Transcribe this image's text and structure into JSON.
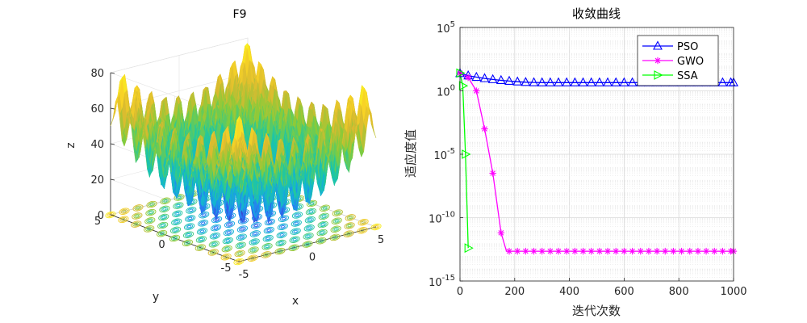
{
  "chart_data": [
    {
      "type": "surface3d",
      "title": "F9",
      "xlabel": "x",
      "ylabel": "y",
      "zlabel": "z",
      "x_ticks": [
        "-5",
        "0",
        "5"
      ],
      "y_ticks": [
        "-5",
        "0",
        "5"
      ],
      "z_ticks": [
        "0",
        "20",
        "40",
        "60",
        "80"
      ],
      "xlim": [
        -5,
        5
      ],
      "ylim": [
        -5,
        5
      ],
      "zlim": [
        0,
        80
      ],
      "colormap": [
        "#3e26a8",
        "#2e6ff7",
        "#13b0db",
        "#1fc8a0",
        "#85cc3a",
        "#d8ba30",
        "#f9d426",
        "#f6f920"
      ]
    },
    {
      "type": "line",
      "title": "收敛曲线",
      "xlabel": "迭代次数",
      "ylabel": "适应度值",
      "xlim": [
        0,
        1000
      ],
      "ylim_log10": [
        -15,
        5
      ],
      "x_ticks": [
        "0",
        "200",
        "400",
        "600",
        "800",
        "1000"
      ],
      "y_ticks": [
        {
          "base": "10",
          "exp": "5",
          "value": 5
        },
        {
          "base": "10",
          "exp": "0",
          "value": 0
        },
        {
          "base": "10",
          "exp": "-5",
          "value": -5
        },
        {
          "base": "10",
          "exp": "-10",
          "value": -10
        },
        {
          "base": "10",
          "exp": "-15",
          "value": -15
        }
      ],
      "legend_position": "top-right",
      "series": [
        {
          "name": "PSO",
          "color": "#0000ff",
          "marker": "triangle",
          "x": [
            0,
            30,
            60,
            90,
            120,
            150,
            180,
            210,
            240,
            270,
            300,
            330,
            360,
            390,
            420,
            450,
            480,
            510,
            540,
            570,
            600,
            630,
            660,
            690,
            720,
            750,
            780,
            810,
            840,
            870,
            900,
            930,
            960,
            990,
            1000
          ],
          "log10_y": [
            1.38,
            1.2,
            1.08,
            0.98,
            0.9,
            0.83,
            0.77,
            0.72,
            0.68,
            0.66,
            0.65,
            0.65,
            0.65,
            0.65,
            0.65,
            0.65,
            0.65,
            0.65,
            0.65,
            0.65,
            0.65,
            0.65,
            0.65,
            0.65,
            0.65,
            0.65,
            0.65,
            0.65,
            0.65,
            0.65,
            0.65,
            0.65,
            0.65,
            0.65,
            0.65
          ]
        },
        {
          "name": "GWO",
          "color": "#ff00ff",
          "marker": "asterisk",
          "x": [
            0,
            30,
            60,
            90,
            120,
            150,
            170,
            180,
            210,
            240,
            270,
            300,
            330,
            360,
            390,
            420,
            450,
            480,
            510,
            540,
            570,
            600,
            630,
            660,
            690,
            720,
            750,
            780,
            810,
            840,
            870,
            900,
            930,
            960,
            990,
            1000
          ],
          "log10_y": [
            1.4,
            1.05,
            0.0,
            -3.0,
            -6.5,
            -11.2,
            -12.65,
            -12.65,
            -12.65,
            -12.65,
            -12.65,
            -12.65,
            -12.65,
            -12.65,
            -12.65,
            -12.65,
            -12.65,
            -12.65,
            -12.65,
            -12.65,
            -12.65,
            -12.65,
            -12.65,
            -12.65,
            -12.65,
            -12.65,
            -12.65,
            -12.65,
            -12.65,
            -12.65,
            -12.65,
            -12.65,
            -12.65,
            -12.65,
            -12.65,
            -12.65
          ]
        },
        {
          "name": "SSA",
          "color": "#00ff00",
          "marker": "triangle-right",
          "x": [
            0,
            10,
            20,
            30
          ],
          "log10_y": [
            1.4,
            0.4,
            -5.0,
            -12.4
          ]
        }
      ]
    }
  ]
}
